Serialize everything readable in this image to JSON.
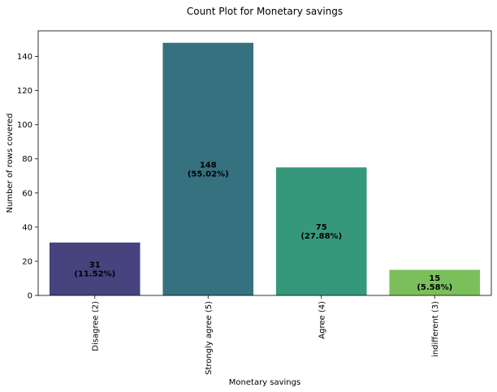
{
  "chart_data": {
    "type": "bar",
    "title": "Count Plot for Monetary savings",
    "xlabel": "Monetary savings",
    "ylabel": "Number of rows covered",
    "categories": [
      "Disagree (2)",
      "Strongly agree (5)",
      "Agree (4)",
      "indifferent (3)"
    ],
    "values": [
      31,
      148,
      75,
      15
    ],
    "data_labels": [
      [
        "31",
        "(11.52%)"
      ],
      [
        "148",
        "(55.02%)"
      ],
      [
        "75",
        "(27.88%)"
      ],
      [
        "15",
        "(5.58%)"
      ]
    ],
    "colors": [
      "#46437f",
      "#35717f",
      "#36987a",
      "#7bbf5b"
    ],
    "ylim": [
      0,
      155
    ],
    "yticks": [
      0,
      20,
      40,
      60,
      80,
      100,
      120,
      140
    ],
    "grid": false,
    "legend": "none"
  }
}
